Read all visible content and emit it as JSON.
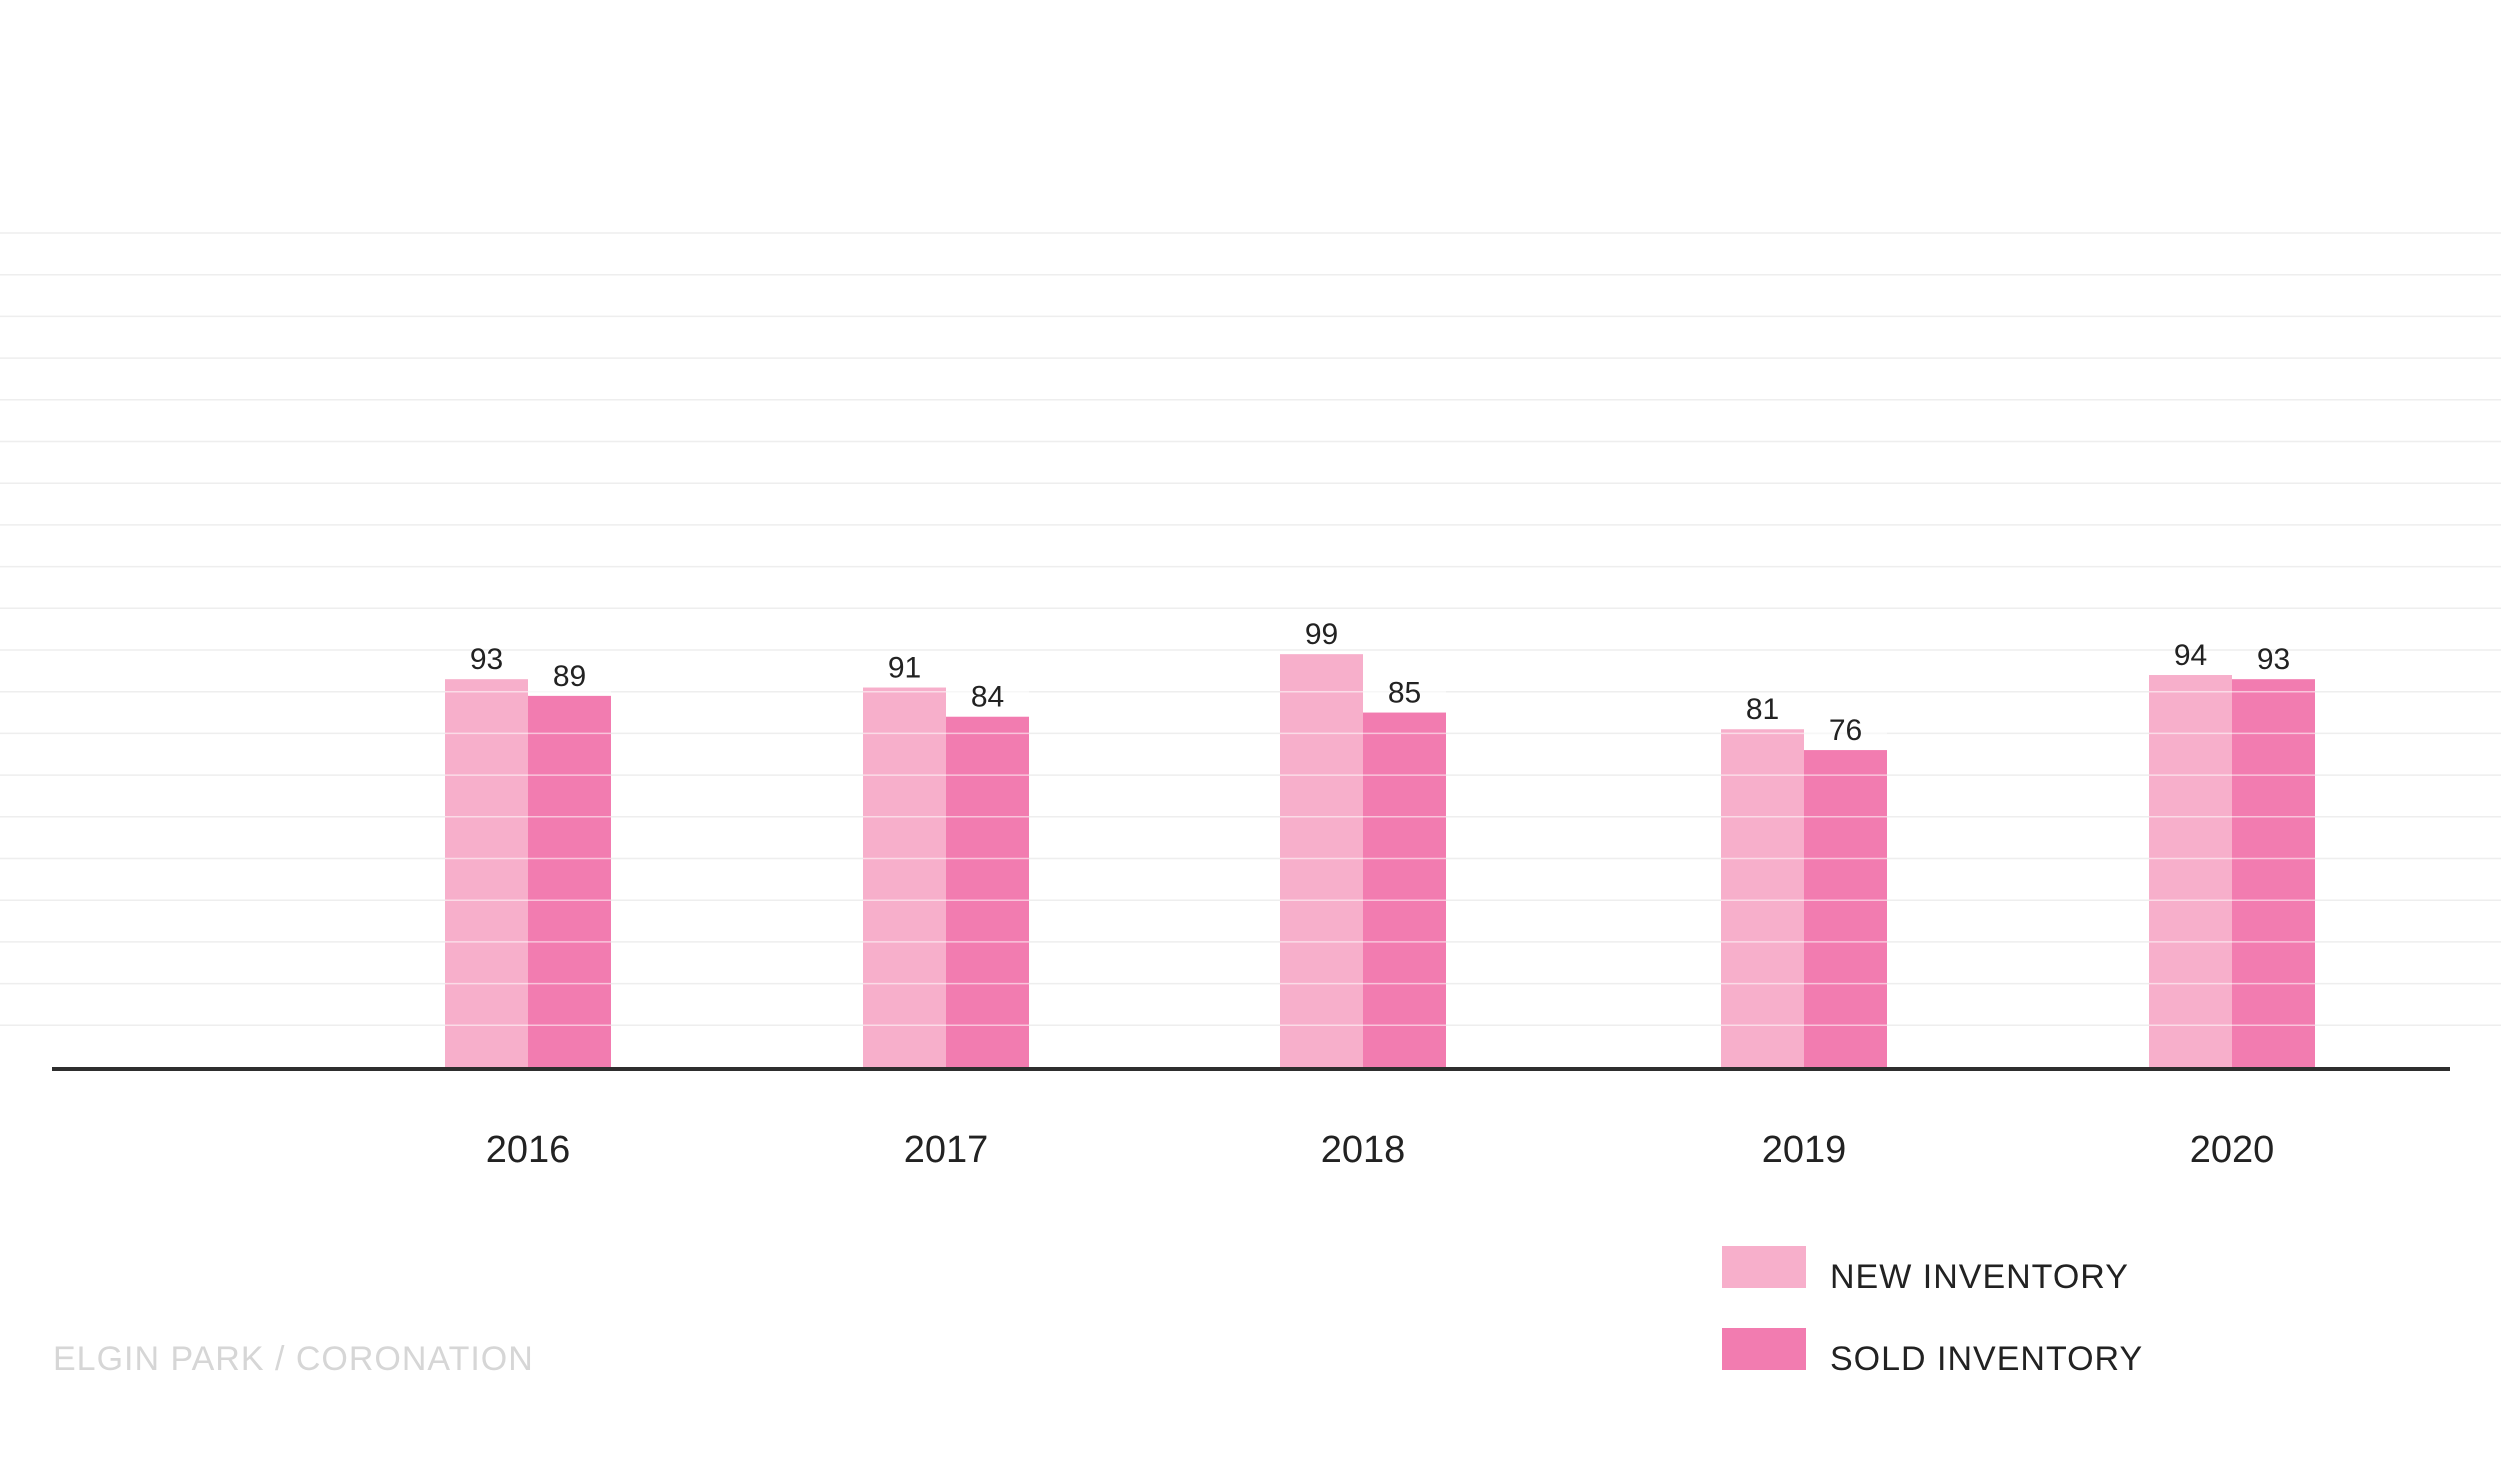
{
  "caption": "ELGIN PARK / CORONATION",
  "chart_data": {
    "type": "bar",
    "title": "",
    "xlabel": "",
    "ylabel": "",
    "categories": [
      "2016",
      "2017",
      "2018",
      "2019",
      "2020"
    ],
    "series": [
      {
        "name": "NEW INVENTORY",
        "values": [
          93,
          91,
          99,
          81,
          94
        ],
        "color": "#f7afcb"
      },
      {
        "name": "SOLD INVENTORY",
        "values": [
          89,
          84,
          85,
          76,
          93
        ],
        "color": "#f27cb0"
      }
    ],
    "ylim": [
      0,
      200
    ],
    "grid": true,
    "legend": "bottom-right"
  }
}
